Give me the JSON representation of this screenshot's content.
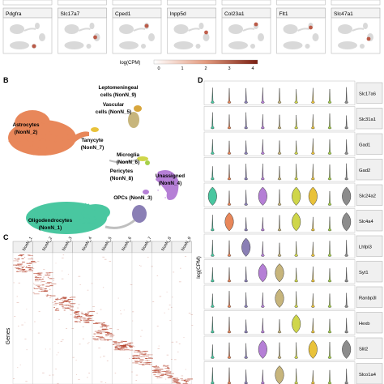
{
  "panel_a": {
    "genes": [
      "Pdgfra",
      "Slc17a7",
      "Cped1",
      "Inpp5d",
      "Col23a1",
      "Flt1",
      "Slc47a1"
    ],
    "legend_label": "log(CPM)",
    "legend_ticks": [
      "0",
      "1",
      "2",
      "3",
      "4"
    ],
    "colors": {
      "low": "#ffffff",
      "high": "#7a1f12",
      "map": "#d9d9d9"
    }
  },
  "panel_b": {
    "letter": "B",
    "clusters": [
      {
        "key": "lepto",
        "lines": [
          "Leptomeningeal",
          "cells (NonN_9)"
        ],
        "color": "#d8a63c"
      },
      {
        "key": "vasc",
        "lines": [
          "Vascular",
          "cells (NonN_5)"
        ],
        "color": "#c7b57c"
      },
      {
        "key": "astro",
        "lines": [
          "Astrocytes",
          "(NonN_2)"
        ],
        "color": "#e8875a"
      },
      {
        "key": "tany",
        "lines": [
          "Tanycyte",
          "(NonN_7)"
        ],
        "color": "#e9c23a"
      },
      {
        "key": "micro",
        "lines": [
          "Microglia",
          "(NonN_6)"
        ],
        "color": "#cfd64a"
      },
      {
        "key": "peri",
        "lines": [
          "Pericytes",
          "(NonN_8)"
        ],
        "color": "#a6d04a"
      },
      {
        "key": "unas",
        "lines": [
          "Unassigned",
          "(NonN_4)"
        ],
        "color": "#b57fd6"
      },
      {
        "key": "opc",
        "lines": [
          "OPCs (NonN_3)"
        ],
        "color": "#8a7fb5"
      },
      {
        "key": "oligo",
        "lines": [
          "Oligodendrocytes",
          "(NonN_1)"
        ],
        "color": "#49c7a0"
      }
    ]
  },
  "panel_c": {
    "letter": "C",
    "columns": [
      "NonN_1",
      "NonN_2",
      "NonN_3",
      "NonN_4",
      "NonN_5",
      "NonN_6",
      "NonN_7",
      "NonN_8",
      "NonN_9"
    ],
    "ylabel": "Genes",
    "color": "#b5442e"
  },
  "panel_d": {
    "letter": "D",
    "ylabel": "log(CPM)",
    "genes": [
      "Slc17a6",
      "Slc31a1",
      "Gad1",
      "Gad2",
      "Slc24a2",
      "Slc4a4",
      "Lhfpl3",
      "Syt1",
      "Ranbp3l",
      "Hexb",
      "Slit2",
      "Slco1a4"
    ],
    "cluster_colors": [
      "#49c7a0",
      "#e8875a",
      "#8a7fb5",
      "#b57fd6",
      "#c7b57c",
      "#cfd64a",
      "#e9c23a",
      "#a6d04a",
      "#8c8c8c"
    ],
    "highlights": {
      "Slc24a2": [
        0,
        3,
        5,
        6,
        8
      ],
      "Slc4a4": [
        1,
        5,
        8
      ],
      "Lhfpl3": [
        2
      ],
      "Syt1": [
        3,
        4
      ],
      "Ranbp3l": [
        4
      ],
      "Hexb": [
        5
      ],
      "Slit2": [
        3,
        6,
        8
      ],
      "Slco1a4": [
        4
      ]
    }
  }
}
